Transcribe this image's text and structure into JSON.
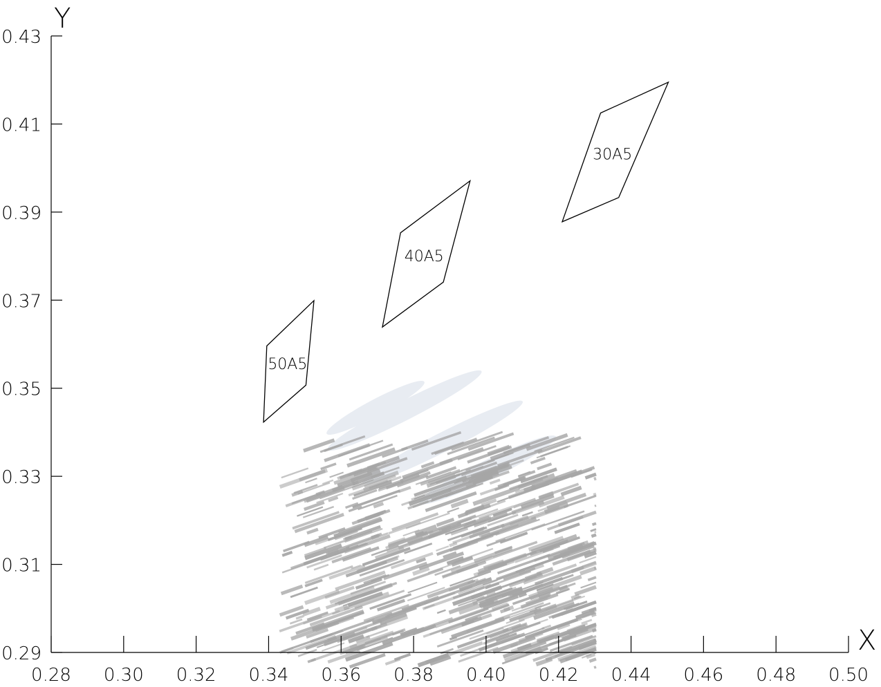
{
  "chart_data": {
    "type": "scatter",
    "xlabel": "X",
    "ylabel": "Y",
    "xlim": [
      0.28,
      0.5
    ],
    "ylim": [
      0.29,
      0.43
    ],
    "xticks": [
      "0.28",
      "0.30",
      "0.32",
      "0.34",
      "0.36",
      "0.38",
      "0.40",
      "0.42",
      "0.44",
      "0.46",
      "0.48",
      "0.50"
    ],
    "yticks": [
      "0.29",
      "0.31",
      "0.33",
      "0.35",
      "0.37",
      "0.39",
      "0.41",
      "0.43"
    ],
    "grid": false,
    "regions": [
      {
        "label": "50A5",
        "points": [
          [
            0.3395,
            0.3596
          ],
          [
            0.3525,
            0.3699
          ],
          [
            0.3503,
            0.3507
          ],
          [
            0.3386,
            0.3423
          ]
        ]
      },
      {
        "label": "40A5",
        "points": [
          [
            0.3764,
            0.3853
          ],
          [
            0.3956,
            0.3971
          ],
          [
            0.3882,
            0.3741
          ],
          [
            0.3714,
            0.3639
          ]
        ]
      },
      {
        "label": "30A5",
        "points": [
          [
            0.4316,
            0.4125
          ],
          [
            0.4503,
            0.4195
          ],
          [
            0.4366,
            0.3933
          ],
          [
            0.421,
            0.3878
          ]
        ]
      }
    ],
    "background_image": {
      "description_color": "#a6a6a6",
      "xrange": [
        0.343,
        0.432
      ],
      "yrange": [
        0.287,
        0.327
      ]
    }
  }
}
